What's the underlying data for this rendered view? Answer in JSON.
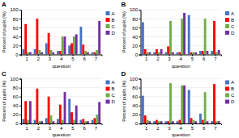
{
  "chart_data": [
    {
      "type": "bar",
      "title": "A",
      "xlabel": "question",
      "ylabel": "Percent of pupils (%)",
      "categories": [
        1,
        2,
        3,
        4,
        5,
        6,
        7
      ],
      "series": [
        {
          "name": "A",
          "color": "#4472c4",
          "values": [
            12,
            12,
            25,
            8,
            20,
            62,
            5
          ]
        },
        {
          "name": "B",
          "color": "#ff0000",
          "values": [
            68,
            80,
            48,
            8,
            25,
            22,
            5
          ]
        },
        {
          "name": "C",
          "color": "#70ad47",
          "values": [
            5,
            10,
            10,
            40,
            40,
            8,
            10
          ]
        },
        {
          "name": "D",
          "color": "#7030a0",
          "values": [
            5,
            5,
            5,
            40,
            45,
            5,
            75
          ]
        }
      ],
      "ylim": [
        0,
        100
      ],
      "yticks": [
        0,
        20,
        40,
        60,
        80,
        100
      ],
      "grid": true,
      "legend": "right"
    },
    {
      "type": "bar",
      "title": "B",
      "xlabel": "question",
      "ylabel": "Percent of pupils (%)",
      "categories": [
        1,
        2,
        3,
        4,
        5,
        6,
        7
      ],
      "series": [
        {
          "name": "A",
          "color": "#4472c4",
          "values": [
            72,
            5,
            5,
            5,
            88,
            8,
            8
          ]
        },
        {
          "name": "B",
          "color": "#ff0000",
          "values": [
            12,
            12,
            18,
            5,
            5,
            8,
            75
          ]
        },
        {
          "name": "C",
          "color": "#70ad47",
          "values": [
            5,
            5,
            75,
            80,
            5,
            80,
            5
          ]
        },
        {
          "name": "D",
          "color": "#7030a0",
          "values": [
            5,
            12,
            5,
            93,
            5,
            8,
            10
          ]
        }
      ],
      "ylim": [
        0,
        100
      ],
      "yticks": [
        0,
        20,
        40,
        60,
        80,
        100
      ],
      "grid": true,
      "legend": "right"
    },
    {
      "type": "bar",
      "title": "C",
      "xlabel": "question",
      "ylabel": "Percent of pupils (%)",
      "categories": [
        1,
        2,
        3,
        4,
        5,
        6,
        7
      ],
      "series": [
        {
          "name": "A",
          "color": "#4472c4",
          "values": [
            10,
            8,
            12,
            10,
            55,
            8,
            8
          ]
        },
        {
          "name": "B",
          "color": "#ff0000",
          "values": [
            50,
            78,
            60,
            42,
            25,
            10,
            12
          ]
        },
        {
          "name": "C",
          "color": "#70ad47",
          "values": [
            8,
            5,
            18,
            8,
            8,
            5,
            20
          ]
        },
        {
          "name": "D",
          "color": "#7030a0",
          "values": [
            50,
            5,
            5,
            70,
            40,
            5,
            48
          ]
        }
      ],
      "ylim": [
        0,
        100
      ],
      "yticks": [
        0,
        20,
        40,
        60,
        80,
        100
      ],
      "grid": true,
      "legend": "right"
    },
    {
      "type": "bar",
      "title": "D",
      "xlabel": "question",
      "ylabel": "Percent of pupils (%)",
      "categories": [
        1,
        2,
        3,
        4,
        5,
        6,
        7
      ],
      "series": [
        {
          "name": "A",
          "color": "#4472c4",
          "values": [
            62,
            5,
            5,
            5,
            75,
            22,
            5
          ]
        },
        {
          "name": "B",
          "color": "#ff0000",
          "values": [
            18,
            8,
            5,
            8,
            12,
            8,
            88
          ]
        },
        {
          "name": "C",
          "color": "#70ad47",
          "values": [
            8,
            5,
            90,
            85,
            8,
            70,
            5
          ]
        },
        {
          "name": "D",
          "color": "#7030a0",
          "values": [
            5,
            5,
            5,
            85,
            5,
            5,
            5
          ]
        }
      ],
      "ylim": [
        0,
        100
      ],
      "yticks": [
        0,
        20,
        40,
        60,
        80,
        100
      ],
      "grid": true,
      "legend": "right"
    }
  ]
}
